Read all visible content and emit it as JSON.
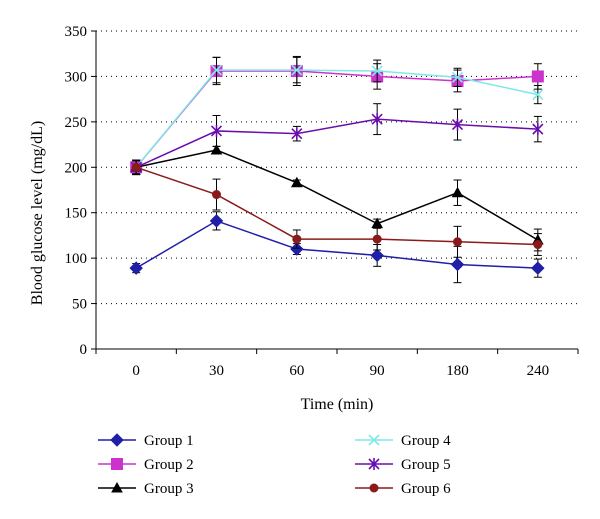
{
  "chart_data": {
    "type": "line",
    "title": "",
    "xlabel": "Time (min)",
    "ylabel": "Blood glucose level (mg/dL)",
    "categories": [
      "0",
      "30",
      "60",
      "90",
      "180",
      "240"
    ],
    "ylim": [
      0,
      350
    ],
    "yticks": [
      0,
      50,
      100,
      150,
      200,
      250,
      300,
      350
    ],
    "grid": "horizontal dotted",
    "legend_position": "bottom",
    "series": [
      {
        "name": "Group 1",
        "color": "#1f1fa8",
        "marker": "diamond",
        "values": [
          89,
          141,
          110,
          103,
          93,
          89
        ],
        "errors": [
          5,
          10,
          6,
          12,
          20,
          10
        ]
      },
      {
        "name": "Group 2",
        "color": "#cc33cc",
        "marker": "square",
        "values": [
          200,
          306,
          306,
          300,
          295,
          300
        ],
        "errors": [
          8,
          15,
          16,
          14,
          12,
          14
        ]
      },
      {
        "name": "Group 3",
        "color": "#000000",
        "marker": "triangle",
        "values": [
          200,
          219,
          183,
          138,
          172,
          120
        ],
        "errors": [
          8,
          4,
          3,
          5,
          14,
          12
        ]
      },
      {
        "name": "Group 4",
        "color": "#7fe8e8",
        "marker": "x",
        "values": [
          200,
          307,
          307,
          306,
          299,
          280
        ],
        "errors": [
          7,
          14,
          14,
          12,
          10,
          10
        ]
      },
      {
        "name": "Group 5",
        "color": "#6a0dad",
        "marker": "star",
        "values": [
          200,
          240,
          237,
          253,
          247,
          242
        ],
        "errors": [
          8,
          17,
          8,
          17,
          17,
          14
        ]
      },
      {
        "name": "Group 6",
        "color": "#8b1a1a",
        "marker": "circle",
        "values": [
          200,
          170,
          121,
          121,
          118,
          115
        ],
        "errors": [
          8,
          17,
          10,
          12,
          17,
          12
        ]
      }
    ]
  }
}
